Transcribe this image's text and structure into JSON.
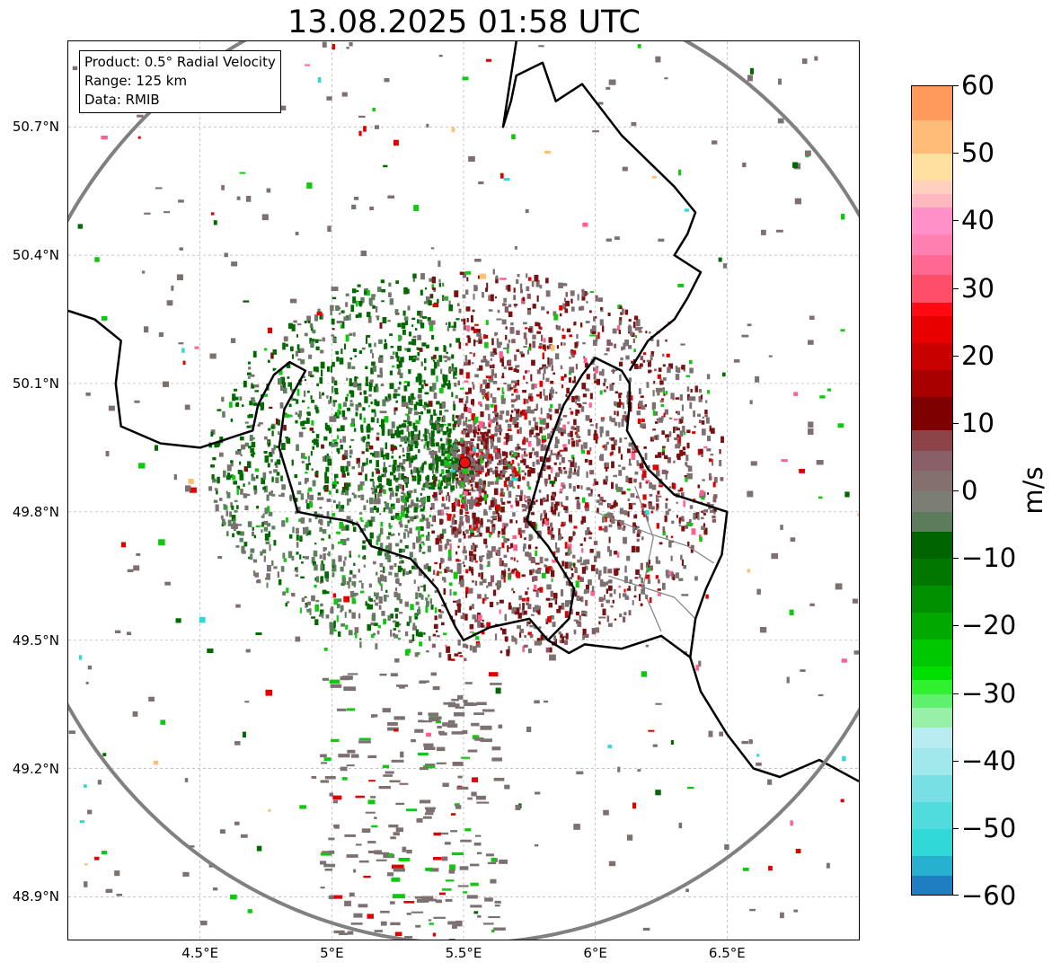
{
  "title": "13.08.2025 01:58 UTC",
  "info": {
    "product": "Product: 0.5° Radial Velocity",
    "range": "Range: 125 km",
    "data": "Data: RMIB"
  },
  "map": {
    "lon_min": 4.0,
    "lon_max": 7.0,
    "lat_min": 48.8,
    "lat_max": 50.9,
    "lat_ticks": [
      {
        "value": 50.7,
        "label": "50.7°N"
      },
      {
        "value": 50.4,
        "label": "50.4°N"
      },
      {
        "value": 50.1,
        "label": "50.1°N"
      },
      {
        "value": 49.8,
        "label": "49.8°N"
      },
      {
        "value": 49.5,
        "label": "49.5°N"
      },
      {
        "value": 49.2,
        "label": "49.2°N"
      },
      {
        "value": 48.9,
        "label": "48.9°N"
      }
    ],
    "lon_ticks": [
      {
        "value": 4.5,
        "label": "4.5°E"
      },
      {
        "value": 5.0,
        "label": "5°E"
      },
      {
        "value": 5.5,
        "label": "5.5°E"
      },
      {
        "value": 6.0,
        "label": "6°E"
      },
      {
        "value": 6.5,
        "label": "6.5°E"
      }
    ],
    "radar_site": {
      "lon": 5.505,
      "lat": 49.915,
      "color": "#e8120c"
    },
    "range_ring_km": 125,
    "range_ring_color": "#808080",
    "border_color": "#000000",
    "inner_border_color": "#808080",
    "grid_color": "#b0b0b0",
    "borders": [
      [
        [
          4.0,
          50.27
        ],
        [
          4.1,
          50.25
        ],
        [
          4.2,
          50.2
        ],
        [
          4.18,
          50.1
        ],
        [
          4.2,
          50.0
        ],
        [
          4.35,
          49.96
        ],
        [
          4.5,
          49.95
        ],
        [
          4.6,
          49.97
        ],
        [
          4.7,
          49.99
        ],
        [
          4.72,
          50.05
        ],
        [
          4.78,
          50.12
        ],
        [
          4.84,
          50.15
        ],
        [
          4.9,
          50.13
        ],
        [
          4.82,
          50.04
        ],
        [
          4.8,
          49.95
        ],
        [
          4.85,
          49.85
        ],
        [
          4.87,
          49.8
        ],
        [
          4.95,
          49.79
        ],
        [
          5.05,
          49.78
        ],
        [
          5.1,
          49.77
        ],
        [
          5.15,
          49.72
        ],
        [
          5.3,
          49.69
        ],
        [
          5.4,
          49.62
        ],
        [
          5.47,
          49.53
        ],
        [
          5.5,
          49.5
        ],
        [
          5.6,
          49.53
        ],
        [
          5.75,
          49.55
        ],
        [
          5.82,
          49.5
        ],
        [
          5.9,
          49.47
        ],
        [
          5.96,
          49.49
        ],
        [
          6.1,
          49.48
        ],
        [
          6.25,
          49.51
        ],
        [
          6.36,
          49.46
        ],
        [
          6.4,
          49.38
        ],
        [
          6.5,
          49.28
        ],
        [
          6.6,
          49.2
        ],
        [
          6.7,
          49.18
        ],
        [
          6.85,
          49.22
        ],
        [
          7.0,
          49.17
        ]
      ],
      [
        [
          5.74,
          49.78
        ],
        [
          5.82,
          49.95
        ],
        [
          5.88,
          50.05
        ],
        [
          5.95,
          50.12
        ],
        [
          6.0,
          50.16
        ],
        [
          6.1,
          50.13
        ],
        [
          6.13,
          50.1
        ],
        [
          6.13,
          50.05
        ],
        [
          6.12,
          49.99
        ],
        [
          6.2,
          49.9
        ],
        [
          6.3,
          49.84
        ],
        [
          6.4,
          49.82
        ],
        [
          6.5,
          49.8
        ],
        [
          6.48,
          49.7
        ],
        [
          6.42,
          49.62
        ],
        [
          6.38,
          49.55
        ],
        [
          6.36,
          49.46
        ]
      ],
      [
        [
          5.82,
          49.5
        ],
        [
          5.9,
          49.55
        ],
        [
          5.92,
          49.62
        ],
        [
          5.82,
          49.72
        ],
        [
          5.74,
          49.78
        ]
      ],
      [
        [
          6.13,
          50.13
        ],
        [
          6.2,
          50.2
        ],
        [
          6.3,
          50.25
        ],
        [
          6.35,
          50.3
        ],
        [
          6.4,
          50.36
        ],
        [
          6.3,
          50.4
        ],
        [
          6.35,
          50.45
        ],
        [
          6.38,
          50.5
        ],
        [
          6.3,
          50.56
        ],
        [
          6.2,
          50.62
        ],
        [
          6.15,
          50.65
        ],
        [
          6.1,
          50.68
        ],
        [
          6.05,
          50.72
        ],
        [
          6.0,
          50.76
        ],
        [
          5.95,
          50.8
        ],
        [
          5.85,
          50.76
        ],
        [
          5.8,
          50.85
        ],
        [
          5.7,
          50.82
        ],
        [
          5.68,
          50.76
        ],
        [
          5.65,
          50.7
        ],
        [
          5.7,
          50.9
        ]
      ]
    ],
    "inner_borders": [
      [
        [
          6.0,
          49.8
        ],
        [
          6.2,
          49.75
        ],
        [
          6.35,
          49.72
        ],
        [
          6.45,
          49.68
        ]
      ],
      [
        [
          6.05,
          49.65
        ],
        [
          6.2,
          49.62
        ],
        [
          6.3,
          49.6
        ],
        [
          6.38,
          49.55
        ]
      ],
      [
        [
          6.15,
          49.86
        ],
        [
          6.22,
          49.74
        ],
        [
          6.18,
          49.62
        ],
        [
          6.25,
          49.52
        ]
      ]
    ],
    "echo_palette": {
      "gray": "#7d7070",
      "maroon": "#7a1010",
      "dark_green": "#006a00",
      "sage": "#5e8060",
      "red": "#e00000",
      "green": "#11c811",
      "pink": "#ff6090",
      "cyan": "#30d8d8",
      "orange": "#ffc070",
      "rose": "#8a5a62"
    }
  },
  "colorbar": {
    "min": -60,
    "max": 60,
    "unit": "m/s",
    "ticks": [
      {
        "value": 60,
        "label": "60"
      },
      {
        "value": 50,
        "label": "50"
      },
      {
        "value": 40,
        "label": "40"
      },
      {
        "value": 30,
        "label": "30"
      },
      {
        "value": 20,
        "label": "20"
      },
      {
        "value": 10,
        "label": "10"
      },
      {
        "value": 0,
        "label": "0"
      },
      {
        "value": -10,
        "label": "−10"
      },
      {
        "value": -20,
        "label": "−20"
      },
      {
        "value": -30,
        "label": "−30"
      },
      {
        "value": -40,
        "label": "−40"
      },
      {
        "value": -50,
        "label": "−50"
      },
      {
        "value": -60,
        "label": "−60"
      }
    ],
    "bands": [
      {
        "from": 55,
        "to": 60,
        "color": "#ff9a5c"
      },
      {
        "from": 50,
        "to": 55,
        "color": "#ffbb78"
      },
      {
        "from": 46,
        "to": 50,
        "color": "#ffe0a0"
      },
      {
        "from": 44,
        "to": 46,
        "color": "#ffd0c0"
      },
      {
        "from": 42,
        "to": 44,
        "color": "#ffb8c0"
      },
      {
        "from": 38,
        "to": 42,
        "color": "#ff90c8"
      },
      {
        "from": 35,
        "to": 38,
        "color": "#ff80b0"
      },
      {
        "from": 32,
        "to": 35,
        "color": "#ff6890"
      },
      {
        "from": 28,
        "to": 32,
        "color": "#ff4e6a"
      },
      {
        "from": 26,
        "to": 28,
        "color": "#ff0a10"
      },
      {
        "from": 22,
        "to": 26,
        "color": "#e80000"
      },
      {
        "from": 18,
        "to": 22,
        "color": "#c80000"
      },
      {
        "from": 14,
        "to": 18,
        "color": "#a80000"
      },
      {
        "from": 9,
        "to": 14,
        "color": "#7e0000"
      },
      {
        "from": 6,
        "to": 9,
        "color": "#8c4448"
      },
      {
        "from": 3,
        "to": 6,
        "color": "#8a6068"
      },
      {
        "from": 0,
        "to": 3,
        "color": "#857070"
      },
      {
        "from": -3,
        "to": 0,
        "color": "#7c7e74"
      },
      {
        "from": -6,
        "to": -3,
        "color": "#5c7c5c"
      },
      {
        "from": -10,
        "to": -6,
        "color": "#006400"
      },
      {
        "from": -14,
        "to": -10,
        "color": "#007800"
      },
      {
        "from": -18,
        "to": -14,
        "color": "#009000"
      },
      {
        "from": -22,
        "to": -18,
        "color": "#00a800"
      },
      {
        "from": -26,
        "to": -22,
        "color": "#00c800"
      },
      {
        "from": -28,
        "to": -26,
        "color": "#00e000"
      },
      {
        "from": -30,
        "to": -28,
        "color": "#30f030"
      },
      {
        "from": -32,
        "to": -30,
        "color": "#60f070"
      },
      {
        "from": -35,
        "to": -32,
        "color": "#98f0a8"
      },
      {
        "from": -38,
        "to": -35,
        "color": "#b8ecf0"
      },
      {
        "from": -42,
        "to": -38,
        "color": "#a0e8ec"
      },
      {
        "from": -46,
        "to": -42,
        "color": "#78e0e4"
      },
      {
        "from": -50,
        "to": -46,
        "color": "#50dcdc"
      },
      {
        "from": -54,
        "to": -50,
        "color": "#30d8d8"
      },
      {
        "from": -57,
        "to": -54,
        "color": "#28b0d0"
      },
      {
        "from": -60,
        "to": -57,
        "color": "#1f7ec0"
      }
    ]
  }
}
